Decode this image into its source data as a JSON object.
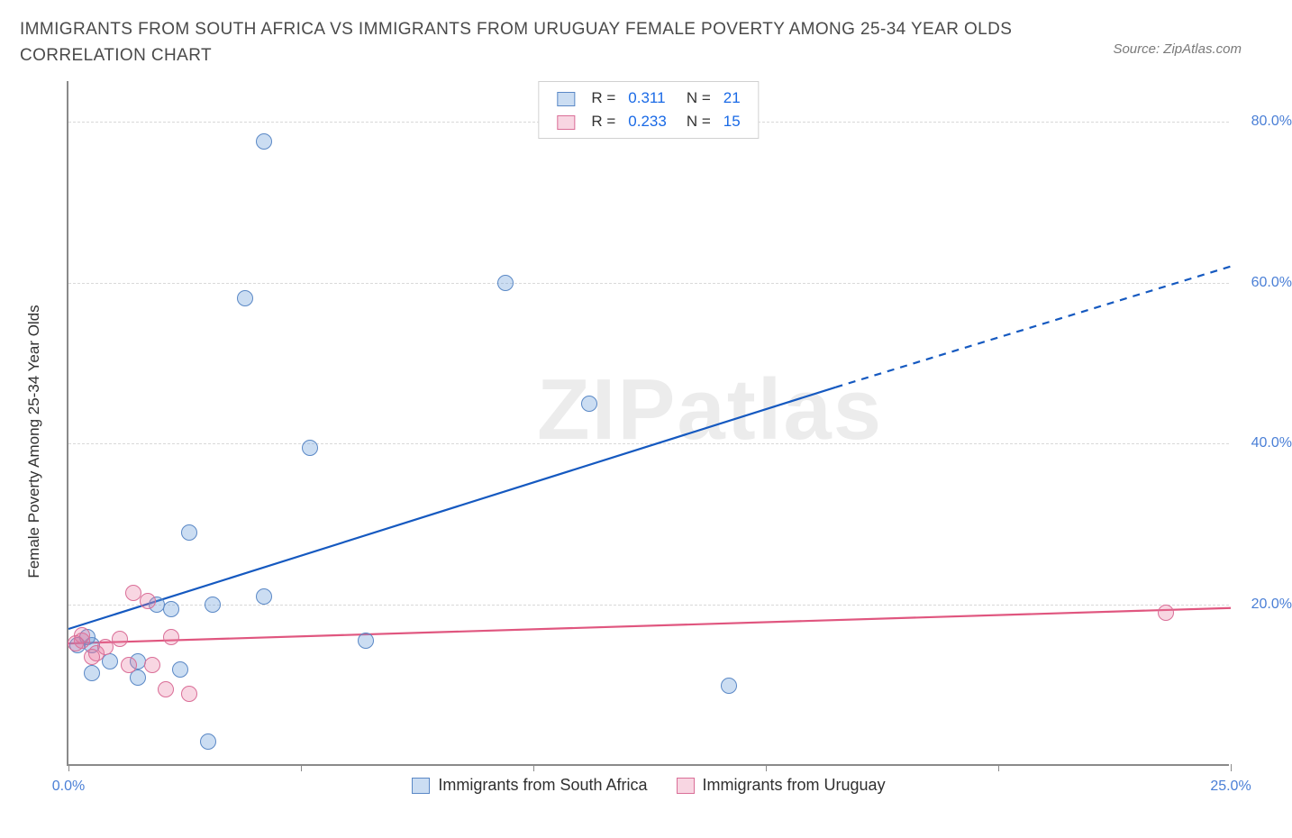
{
  "title": "IMMIGRANTS FROM SOUTH AFRICA VS IMMIGRANTS FROM URUGUAY FEMALE POVERTY AMONG 25-34 YEAR OLDS CORRELATION CHART",
  "source_label": "Source: ZipAtlas.com",
  "watermark_text": "ZIPatlas",
  "y_axis_label": "Female Poverty Among 25-34 Year Olds",
  "chart": {
    "type": "scatter-with-regression",
    "background_color": "#ffffff",
    "axis_color": "#8a8a8a",
    "grid_color": "#d9d9d9",
    "tick_label_color": "#4a7fd6",
    "xlim": [
      0,
      25
    ],
    "ylim": [
      0,
      85
    ],
    "x_ticks": [
      0,
      5,
      10,
      15,
      20,
      25
    ],
    "x_tick_labels": [
      "0.0%",
      "",
      "",
      "",
      "",
      "25.0%"
    ],
    "y_ticks": [
      20,
      40,
      60,
      80
    ],
    "y_tick_labels": [
      "20.0%",
      "40.0%",
      "60.0%",
      "80.0%"
    ],
    "marker_radius": 9,
    "marker_border_width": 1.2,
    "series": [
      {
        "name": "Immigrants from South Africa",
        "fill_color": "rgba(107,159,219,0.35)",
        "border_color": "#5a88c6",
        "line_color": "#1559c0",
        "line_width": 2.2,
        "R": "0.311",
        "N": "21",
        "regression": {
          "x1": 0,
          "y1": 17,
          "x2_solid": 16.5,
          "y2_solid": 47,
          "x2": 25,
          "y2": 62
        },
        "points": [
          {
            "x": 4.2,
            "y": 77.5
          },
          {
            "x": 3.8,
            "y": 58.0
          },
          {
            "x": 9.4,
            "y": 60.0
          },
          {
            "x": 11.2,
            "y": 45.0
          },
          {
            "x": 5.2,
            "y": 39.5
          },
          {
            "x": 2.6,
            "y": 29.0
          },
          {
            "x": 4.2,
            "y": 21.0
          },
          {
            "x": 3.1,
            "y": 20.0
          },
          {
            "x": 1.9,
            "y": 20.0
          },
          {
            "x": 6.4,
            "y": 15.5
          },
          {
            "x": 0.5,
            "y": 15.0
          },
          {
            "x": 0.2,
            "y": 15.0
          },
          {
            "x": 1.5,
            "y": 13.0
          },
          {
            "x": 0.9,
            "y": 13.0
          },
          {
            "x": 1.5,
            "y": 11.0
          },
          {
            "x": 2.4,
            "y": 12.0
          },
          {
            "x": 0.5,
            "y": 11.5
          },
          {
            "x": 14.2,
            "y": 10.0
          },
          {
            "x": 3.0,
            "y": 3.0
          },
          {
            "x": 2.2,
            "y": 19.5
          },
          {
            "x": 0.4,
            "y": 16.0
          }
        ]
      },
      {
        "name": "Immigrants from Uruguay",
        "fill_color": "rgba(231,120,160,0.30)",
        "border_color": "#da6e97",
        "line_color": "#e0567f",
        "line_width": 2.2,
        "R": "0.233",
        "N": "15",
        "regression": {
          "x1": 0,
          "y1": 15.2,
          "x2_solid": 25,
          "y2_solid": 19.6,
          "x2": 25,
          "y2": 19.6
        },
        "points": [
          {
            "x": 23.6,
            "y": 19.0
          },
          {
            "x": 1.4,
            "y": 21.5
          },
          {
            "x": 1.7,
            "y": 20.5
          },
          {
            "x": 2.2,
            "y": 16.0
          },
          {
            "x": 0.3,
            "y": 15.5
          },
          {
            "x": 0.6,
            "y": 14.0
          },
          {
            "x": 1.3,
            "y": 12.5
          },
          {
            "x": 1.8,
            "y": 12.5
          },
          {
            "x": 0.8,
            "y": 14.8
          },
          {
            "x": 0.5,
            "y": 13.5
          },
          {
            "x": 2.6,
            "y": 9.0
          },
          {
            "x": 2.1,
            "y": 9.5
          },
          {
            "x": 0.3,
            "y": 16.2
          },
          {
            "x": 1.1,
            "y": 15.8
          },
          {
            "x": 0.15,
            "y": 15.2
          }
        ]
      }
    ],
    "legend_top": {
      "r_label": "R =",
      "n_label": "N =",
      "stat_color": "#1a6ae6"
    }
  }
}
